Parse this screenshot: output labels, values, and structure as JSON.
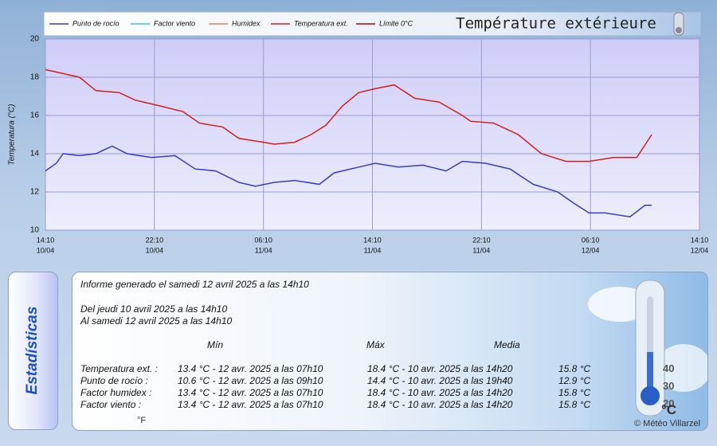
{
  "chart_data": {
    "type": "line",
    "title": "Température extérieure",
    "y_label": "Temperatura (°C)",
    "xlim": [
      0,
      48
    ],
    "xticks": [
      {
        "value": 0,
        "label": "14:10",
        "date": "10/04"
      },
      {
        "value": 8,
        "label": "22:10",
        "date": "10/04"
      },
      {
        "value": 16,
        "label": "06:10",
        "date": "11/04"
      },
      {
        "value": 24,
        "label": "14:10",
        "date": "11/04"
      },
      {
        "value": 32,
        "label": "22:10",
        "date": "11/04"
      },
      {
        "value": 40,
        "label": "06:10",
        "date": "12/04"
      },
      {
        "value": 48,
        "label": "14:10",
        "date": "12/04"
      }
    ],
    "ylim": [
      10,
      20
    ],
    "yticks": [
      10,
      12,
      14,
      16,
      18,
      20
    ],
    "grid": true,
    "series": [
      {
        "name": "Punto de rocío",
        "color": "#3b3bb8",
        "x": [
          0,
          0.8,
          1.3,
          2.5,
          3.7,
          4.9,
          6.0,
          7.8,
          9.5,
          11.0,
          12.5,
          14.2,
          15.4,
          16.8,
          18.3,
          20.1,
          21.2,
          23.0,
          24.2,
          25.9,
          27.7,
          29.4,
          30.6,
          32.3,
          34.1,
          35.8,
          37.6,
          38.8,
          39.9,
          41.1,
          42.9,
          44.0,
          44.5
        ],
        "values": [
          13.1,
          13.5,
          14.0,
          13.9,
          14.0,
          14.4,
          14.0,
          13.8,
          13.9,
          13.2,
          13.1,
          12.5,
          12.3,
          12.5,
          12.6,
          12.4,
          13.0,
          13.3,
          13.5,
          13.3,
          13.4,
          13.1,
          13.6,
          13.5,
          13.2,
          12.4,
          12.0,
          11.4,
          10.9,
          10.9,
          10.7,
          11.3,
          11.3
        ]
      },
      {
        "name": "Factor viento",
        "color": "#3cc0e0",
        "x": [],
        "values": []
      },
      {
        "name": "Humidex",
        "color": "#e0805a",
        "x": [],
        "values": []
      },
      {
        "name": "Temperatura ext.",
        "color": "#cc2020",
        "x": [
          0,
          2.5,
          3.7,
          5.4,
          6.6,
          8.4,
          10.1,
          11.3,
          13.0,
          14.2,
          16.0,
          16.8,
          18.3,
          19.5,
          20.6,
          21.8,
          23.0,
          24.2,
          25.6,
          27.1,
          28.9,
          30.6,
          31.2,
          32.9,
          34.7,
          36.4,
          38.2,
          39.9,
          41.7,
          43.4,
          44.5
        ],
        "values": [
          18.4,
          18.0,
          17.3,
          17.2,
          16.8,
          16.5,
          16.2,
          15.6,
          15.4,
          14.8,
          14.6,
          14.5,
          14.6,
          15.0,
          15.5,
          16.5,
          17.2,
          17.4,
          17.6,
          16.9,
          16.7,
          16.0,
          15.7,
          15.6,
          15.0,
          14.0,
          13.6,
          13.6,
          13.8,
          13.8,
          15.0
        ]
      },
      {
        "name": "Límite 0°C",
        "color": "#c00000",
        "x": [],
        "values": []
      }
    ]
  },
  "stats": {
    "side_title": "Estadísticas",
    "generated": "Informe generado el samedi 12 avril 2025 a las 14h10",
    "period_from": "Del jeudi 10 avril 2025 a las 14h10",
    "period_to": "Al samedi 12 avril 2025 a las 14h10",
    "headers": [
      "Mín",
      "Máx",
      "Media"
    ],
    "rows": [
      [
        "Temperatura ext. :",
        "13.4 °C - 12 avr. 2025 a las 07h10",
        "18.4 °C - 10 avr. 2025 a las 14h20",
        "15.8 °C"
      ],
      [
        "Punto de rocío :",
        "10.6 °C - 12 avr. 2025 a las 09h10",
        "14.4 °C - 10 avr. 2025 a las 19h40",
        "12.9 °C"
      ],
      [
        "Factor humidex :",
        "13.4 °C - 12 avr. 2025 a las 07h10",
        "18.4 °C - 10 avr. 2025 a las 14h20",
        "15.8 °C"
      ],
      [
        "Factor viento :",
        "13.4 °C - 12 avr. 2025 a las 07h10",
        "18.4 °C - 10 avr. 2025 a las 14h20",
        "15.8 °C"
      ]
    ],
    "thermo_scale": [
      "40",
      "30",
      "20"
    ],
    "thermo_unit": "°C",
    "thermo_unit_f": "°F",
    "credit": "© Météo Villarzel"
  }
}
